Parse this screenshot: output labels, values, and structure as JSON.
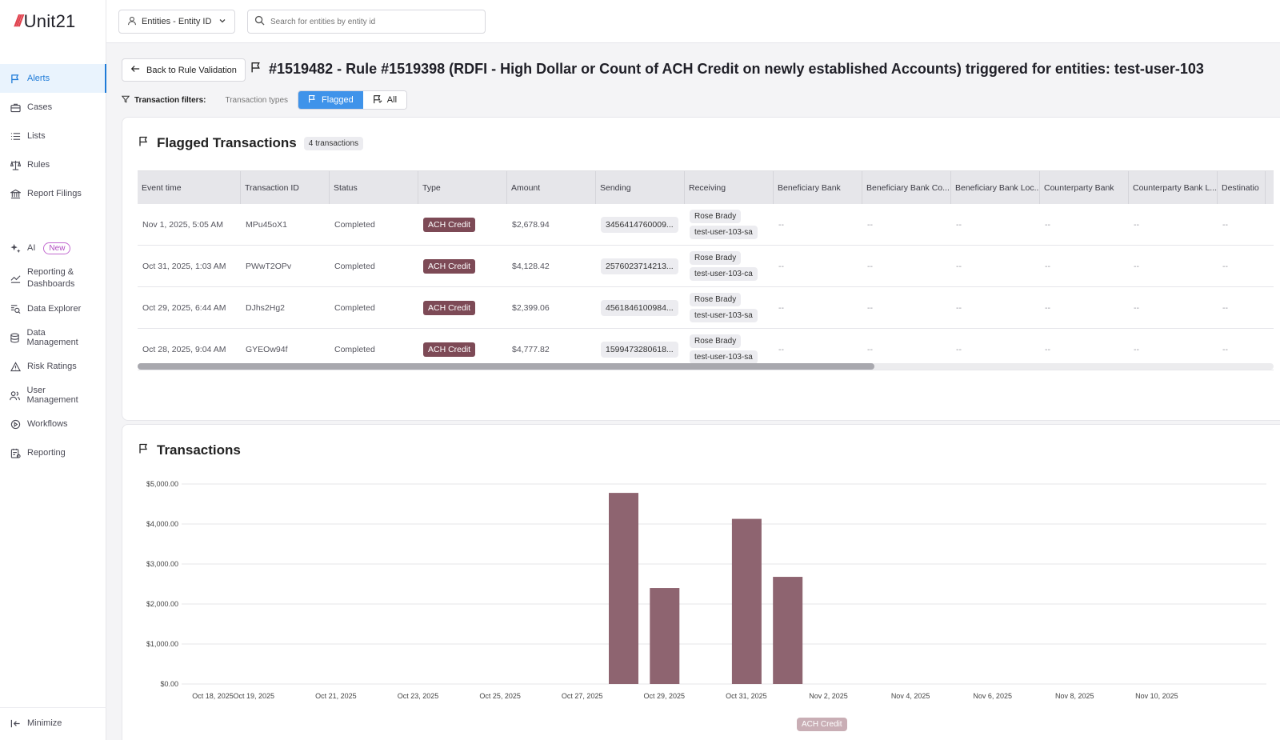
{
  "app": {
    "logo_text": "Unit21",
    "logo_mark": "///"
  },
  "sidebar": {
    "items": [
      {
        "label": "Alerts",
        "icon": "flag-icon",
        "active": true
      },
      {
        "label": "Cases",
        "icon": "briefcase-icon"
      },
      {
        "label": "Lists",
        "icon": "list-icon"
      },
      {
        "label": "Rules",
        "icon": "scale-icon"
      },
      {
        "label": "Report Filings",
        "icon": "bank-icon"
      }
    ],
    "items2": [
      {
        "label": "AI",
        "icon": "sparkle-icon",
        "badge": "New"
      },
      {
        "label": "Reporting & Dashboards",
        "icon": "chart-line-icon"
      },
      {
        "label": "Data Explorer",
        "icon": "data-search-icon"
      },
      {
        "label": "Data Management",
        "icon": "database-icon"
      },
      {
        "label": "Risk Ratings",
        "icon": "warning-icon"
      },
      {
        "label": "User Management",
        "icon": "users-icon"
      },
      {
        "label": "Workflows",
        "icon": "workflow-icon"
      },
      {
        "label": "Reporting",
        "icon": "report-icon"
      }
    ],
    "minimize_label": "Minimize"
  },
  "topbar": {
    "entity_select": "Entities - Entity ID",
    "search_placeholder": "Search for entities by entity id"
  },
  "header": {
    "back_label": "Back to Rule Validation",
    "title": "#1519482 - Rule #1519398 (RDFI - High Dollar or Count of ACH Credit on newly established Accounts) triggered for entities: test-user-103"
  },
  "filters": {
    "label": "Transaction filters:",
    "types_label": "Transaction types",
    "flagged_label": "Flagged",
    "all_label": "All"
  },
  "flagged": {
    "title": "Flagged Transactions",
    "count_label": "4 transactions",
    "columns": [
      "Event time",
      "Transaction ID",
      "Status",
      "Type",
      "Amount",
      "Sending",
      "Receiving",
      "Beneficiary Bank",
      "Beneficiary Bank Co...",
      "Beneficiary Bank Loc...",
      "Counterparty Bank",
      "Counterparty Bank L...",
      "Destinatio"
    ],
    "rows": [
      {
        "event_time": "Nov 1, 2025, 5:05 AM",
        "txn_id": "MPu45oX1",
        "status": "Completed",
        "type": "ACH Credit",
        "amount": "$2,678.94",
        "sending": "3456414760009...",
        "recv_name": "Rose Brady",
        "recv_acct": "test-user-103-sa",
        "empty": "--"
      },
      {
        "event_time": "Oct 31, 2025, 1:03 AM",
        "txn_id": "PWwT2OPv",
        "status": "Completed",
        "type": "ACH Credit",
        "amount": "$4,128.42",
        "sending": "2576023714213...",
        "recv_name": "Rose Brady",
        "recv_acct": "test-user-103-ca",
        "empty": "--"
      },
      {
        "event_time": "Oct 29, 2025, 6:44 AM",
        "txn_id": "DJhs2Hg2",
        "status": "Completed",
        "type": "ACH Credit",
        "amount": "$2,399.06",
        "sending": "4561846100984...",
        "recv_name": "Rose Brady",
        "recv_acct": "test-user-103-sa",
        "empty": "--"
      },
      {
        "event_time": "Oct 28, 2025, 9:04 AM",
        "txn_id": "GYEOw94f",
        "status": "Completed",
        "type": "ACH Credit",
        "amount": "$4,777.82",
        "sending": "1599473280618...",
        "recv_name": "Rose Brady",
        "recv_acct": "test-user-103-sa",
        "empty": "--"
      }
    ]
  },
  "transactions": {
    "title": "Transactions"
  },
  "chart_data": {
    "type": "bar",
    "title": "Transactions",
    "xlabel": "",
    "ylabel": "",
    "ylim": [
      0,
      5000
    ],
    "yticks": [
      "$0.00",
      "$1,000.00",
      "$2,000.00",
      "$3,000.00",
      "$4,000.00",
      "$5,000.00"
    ],
    "xticks": [
      "Oct 18, 2025",
      "Oct 19, 2025",
      "Oct 21, 2025",
      "Oct 23, 2025",
      "Oct 25, 2025",
      "Oct 27, 2025",
      "Oct 29, 2025",
      "Oct 31, 2025",
      "Nov 2, 2025",
      "Nov 4, 2025",
      "Nov 6, 2025",
      "Nov 8, 2025",
      "Nov 10, 2025"
    ],
    "grid": true,
    "legend": "bottom",
    "series": [
      {
        "name": "ACH Credit",
        "color": "#8e6470",
        "points": [
          {
            "x": "Oct 28, 2025",
            "y": 4777.82
          },
          {
            "x": "Oct 29, 2025",
            "y": 2399.06
          },
          {
            "x": "Oct 31, 2025",
            "y": 4128.42
          },
          {
            "x": "Nov 1, 2025",
            "y": 2678.94
          }
        ]
      }
    ]
  },
  "colors": {
    "accent": "#1f7bd8",
    "flagged_button": "#3f93ea",
    "type_chip": "#7d4a56",
    "bar": "#8e6470"
  }
}
